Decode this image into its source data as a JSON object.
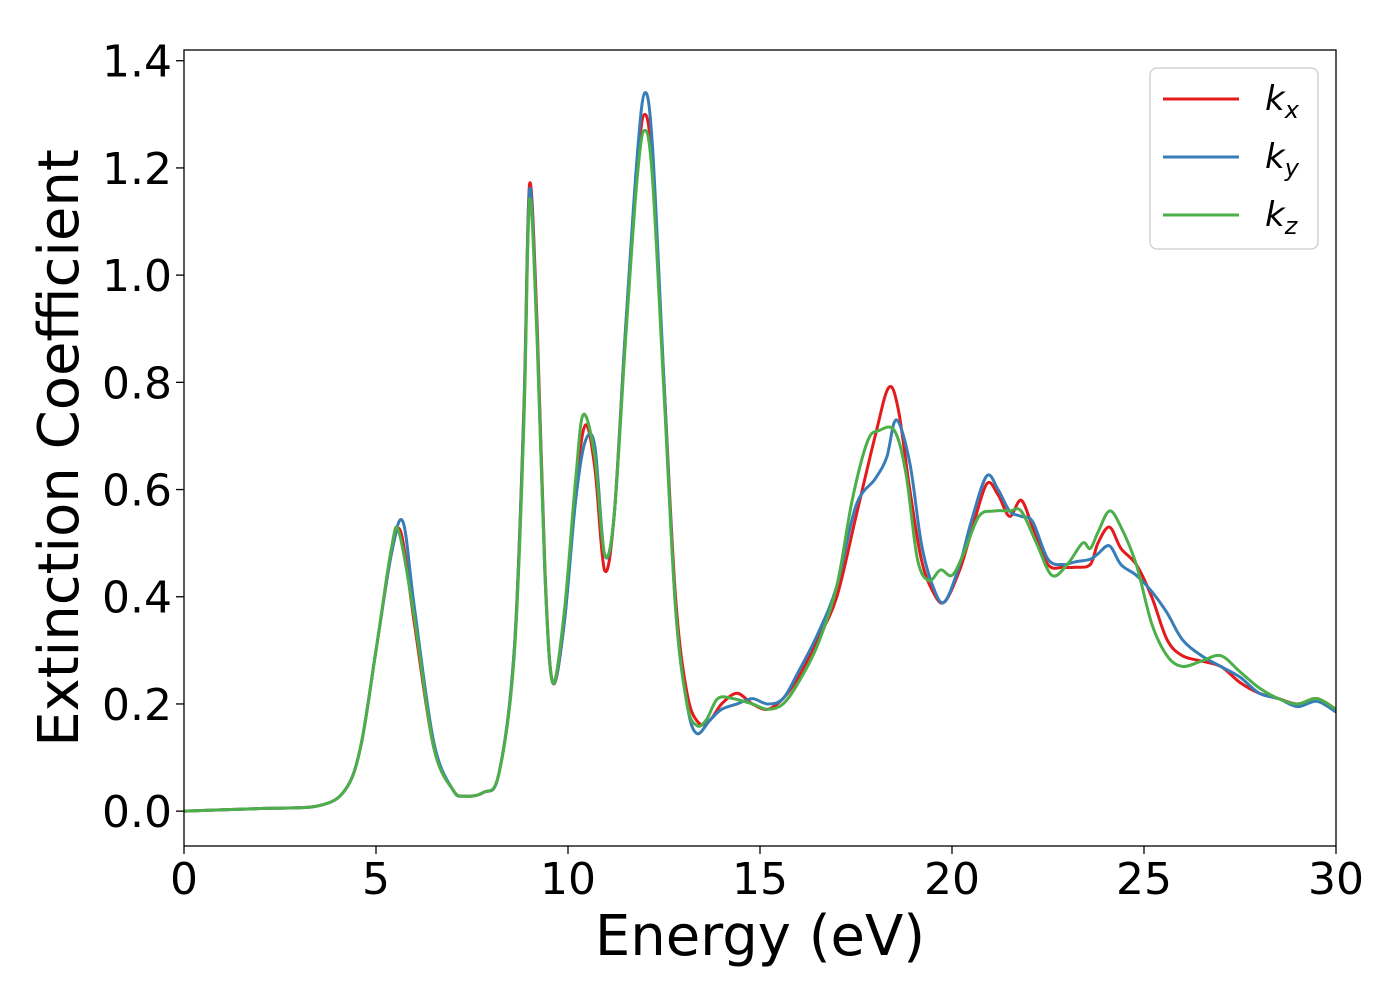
{
  "chart_data": {
    "type": "line",
    "title": "",
    "xlabel": "Energy (eV)",
    "ylabel": "Extinction Coefficient",
    "xlim": [
      0,
      30
    ],
    "ylim": [
      -0.065,
      1.42
    ],
    "xticks": [
      0,
      5,
      10,
      15,
      20,
      25,
      30
    ],
    "yticks": [
      0.0,
      0.2,
      0.4,
      0.6,
      0.8,
      1.0,
      1.2,
      1.4
    ],
    "xtick_labels": [
      "0",
      "5",
      "10",
      "15",
      "20",
      "25",
      "30"
    ],
    "ytick_labels": [
      "0.0",
      "0.2",
      "0.4",
      "0.6",
      "0.8",
      "1.0",
      "1.2",
      "1.4"
    ],
    "grid": false,
    "legend": "top-right",
    "series": [
      {
        "name": "k",
        "subscript": "x",
        "color": "#e41a1c",
        "x": [
          0,
          2,
          3.5,
          4.2,
          4.6,
          5.0,
          5.4,
          5.65,
          6.0,
          6.5,
          7.0,
          7.3,
          7.8,
          8.2,
          8.6,
          8.85,
          9.0,
          9.2,
          9.4,
          9.6,
          9.9,
          10.2,
          10.45,
          10.7,
          10.95,
          11.2,
          11.5,
          11.8,
          12.0,
          12.2,
          12.5,
          12.8,
          13.1,
          13.4,
          13.7,
          14.0,
          14.4,
          14.8,
          15.2,
          15.6,
          16.0,
          16.5,
          17.0,
          17.5,
          18.0,
          18.35,
          18.6,
          18.9,
          19.2,
          19.5,
          19.8,
          20.2,
          20.5,
          20.9,
          21.2,
          21.5,
          21.8,
          22.1,
          22.5,
          22.9,
          23.2,
          23.6,
          23.8,
          24.1,
          24.4,
          24.8,
          25.2,
          25.6,
          26.0,
          26.5,
          27.0,
          27.5,
          28.0,
          28.5,
          29.0,
          29.5,
          30.0
        ],
        "y": [
          0.0,
          0.005,
          0.01,
          0.04,
          0.12,
          0.3,
          0.48,
          0.52,
          0.35,
          0.12,
          0.04,
          0.028,
          0.035,
          0.07,
          0.3,
          0.75,
          1.17,
          0.9,
          0.45,
          0.24,
          0.35,
          0.6,
          0.72,
          0.64,
          0.45,
          0.55,
          0.9,
          1.2,
          1.3,
          1.2,
          0.8,
          0.4,
          0.22,
          0.165,
          0.17,
          0.2,
          0.22,
          0.2,
          0.19,
          0.21,
          0.25,
          0.32,
          0.4,
          0.55,
          0.7,
          0.79,
          0.75,
          0.6,
          0.47,
          0.41,
          0.39,
          0.45,
          0.52,
          0.61,
          0.59,
          0.55,
          0.58,
          0.53,
          0.46,
          0.455,
          0.455,
          0.46,
          0.5,
          0.53,
          0.49,
          0.46,
          0.4,
          0.32,
          0.29,
          0.28,
          0.27,
          0.24,
          0.22,
          0.21,
          0.2,
          0.21,
          0.19
        ]
      },
      {
        "name": "k",
        "subscript": "y",
        "color": "#377eb8",
        "x": [
          0,
          2,
          3.5,
          4.2,
          4.6,
          5.0,
          5.4,
          5.7,
          6.0,
          6.5,
          7.0,
          7.3,
          7.8,
          8.2,
          8.6,
          8.85,
          9.0,
          9.2,
          9.4,
          9.6,
          9.9,
          10.2,
          10.45,
          10.7,
          10.95,
          11.2,
          11.5,
          11.8,
          12.0,
          12.2,
          12.5,
          12.8,
          13.1,
          13.35,
          13.7,
          14.0,
          14.4,
          14.8,
          15.2,
          15.6,
          16.0,
          16.5,
          17.0,
          17.5,
          18.0,
          18.3,
          18.55,
          18.9,
          19.2,
          19.5,
          19.8,
          20.2,
          20.5,
          20.9,
          21.2,
          21.5,
          21.8,
          22.1,
          22.5,
          22.9,
          23.2,
          23.6,
          23.8,
          24.1,
          24.4,
          24.8,
          25.2,
          25.6,
          26.0,
          26.5,
          27.0,
          27.5,
          28.0,
          28.5,
          29.0,
          29.5,
          30.0
        ],
        "y": [
          0.0,
          0.005,
          0.01,
          0.04,
          0.12,
          0.3,
          0.48,
          0.54,
          0.38,
          0.13,
          0.04,
          0.028,
          0.035,
          0.07,
          0.3,
          0.74,
          1.16,
          0.88,
          0.44,
          0.24,
          0.35,
          0.58,
          0.69,
          0.68,
          0.48,
          0.55,
          0.9,
          1.22,
          1.34,
          1.24,
          0.8,
          0.38,
          0.2,
          0.145,
          0.17,
          0.19,
          0.2,
          0.21,
          0.2,
          0.21,
          0.26,
          0.33,
          0.42,
          0.57,
          0.62,
          0.66,
          0.73,
          0.65,
          0.5,
          0.42,
          0.39,
          0.46,
          0.54,
          0.625,
          0.6,
          0.56,
          0.55,
          0.54,
          0.47,
          0.46,
          0.465,
          0.47,
          0.48,
          0.495,
          0.46,
          0.44,
          0.41,
          0.37,
          0.32,
          0.29,
          0.27,
          0.25,
          0.22,
          0.21,
          0.195,
          0.205,
          0.185
        ]
      },
      {
        "name": "k",
        "subscript": "z",
        "color": "#4daf4a",
        "x": [
          0,
          2,
          3.5,
          4.2,
          4.6,
          5.0,
          5.4,
          5.6,
          6.0,
          6.5,
          7.0,
          7.3,
          7.8,
          8.2,
          8.6,
          8.85,
          9.0,
          9.2,
          9.4,
          9.6,
          9.9,
          10.2,
          10.4,
          10.7,
          10.95,
          11.2,
          11.5,
          11.8,
          12.0,
          12.2,
          12.5,
          12.8,
          13.1,
          13.35,
          13.6,
          13.9,
          14.3,
          14.8,
          15.2,
          15.6,
          16.0,
          16.5,
          17.0,
          17.4,
          17.8,
          18.1,
          18.5,
          18.8,
          19.1,
          19.4,
          19.7,
          20.0,
          20.3,
          20.7,
          21.1,
          21.5,
          21.8,
          22.2,
          22.6,
          23.0,
          23.4,
          23.6,
          23.8,
          24.1,
          24.4,
          24.8,
          25.2,
          25.6,
          26.0,
          26.5,
          27.0,
          27.5,
          28.0,
          28.5,
          29.0,
          29.5,
          30.0
        ],
        "y": [
          0.0,
          0.005,
          0.01,
          0.04,
          0.12,
          0.3,
          0.49,
          0.52,
          0.36,
          0.12,
          0.04,
          0.028,
          0.035,
          0.07,
          0.29,
          0.72,
          1.14,
          0.87,
          0.44,
          0.24,
          0.37,
          0.62,
          0.74,
          0.66,
          0.48,
          0.55,
          0.88,
          1.18,
          1.27,
          1.18,
          0.78,
          0.38,
          0.2,
          0.16,
          0.17,
          0.21,
          0.21,
          0.2,
          0.19,
          0.2,
          0.24,
          0.31,
          0.42,
          0.58,
          0.69,
          0.71,
          0.71,
          0.63,
          0.47,
          0.43,
          0.45,
          0.44,
          0.48,
          0.55,
          0.56,
          0.56,
          0.56,
          0.5,
          0.44,
          0.46,
          0.5,
          0.49,
          0.52,
          0.56,
          0.53,
          0.46,
          0.35,
          0.29,
          0.27,
          0.28,
          0.29,
          0.26,
          0.23,
          0.21,
          0.2,
          0.21,
          0.19
        ]
      }
    ]
  }
}
